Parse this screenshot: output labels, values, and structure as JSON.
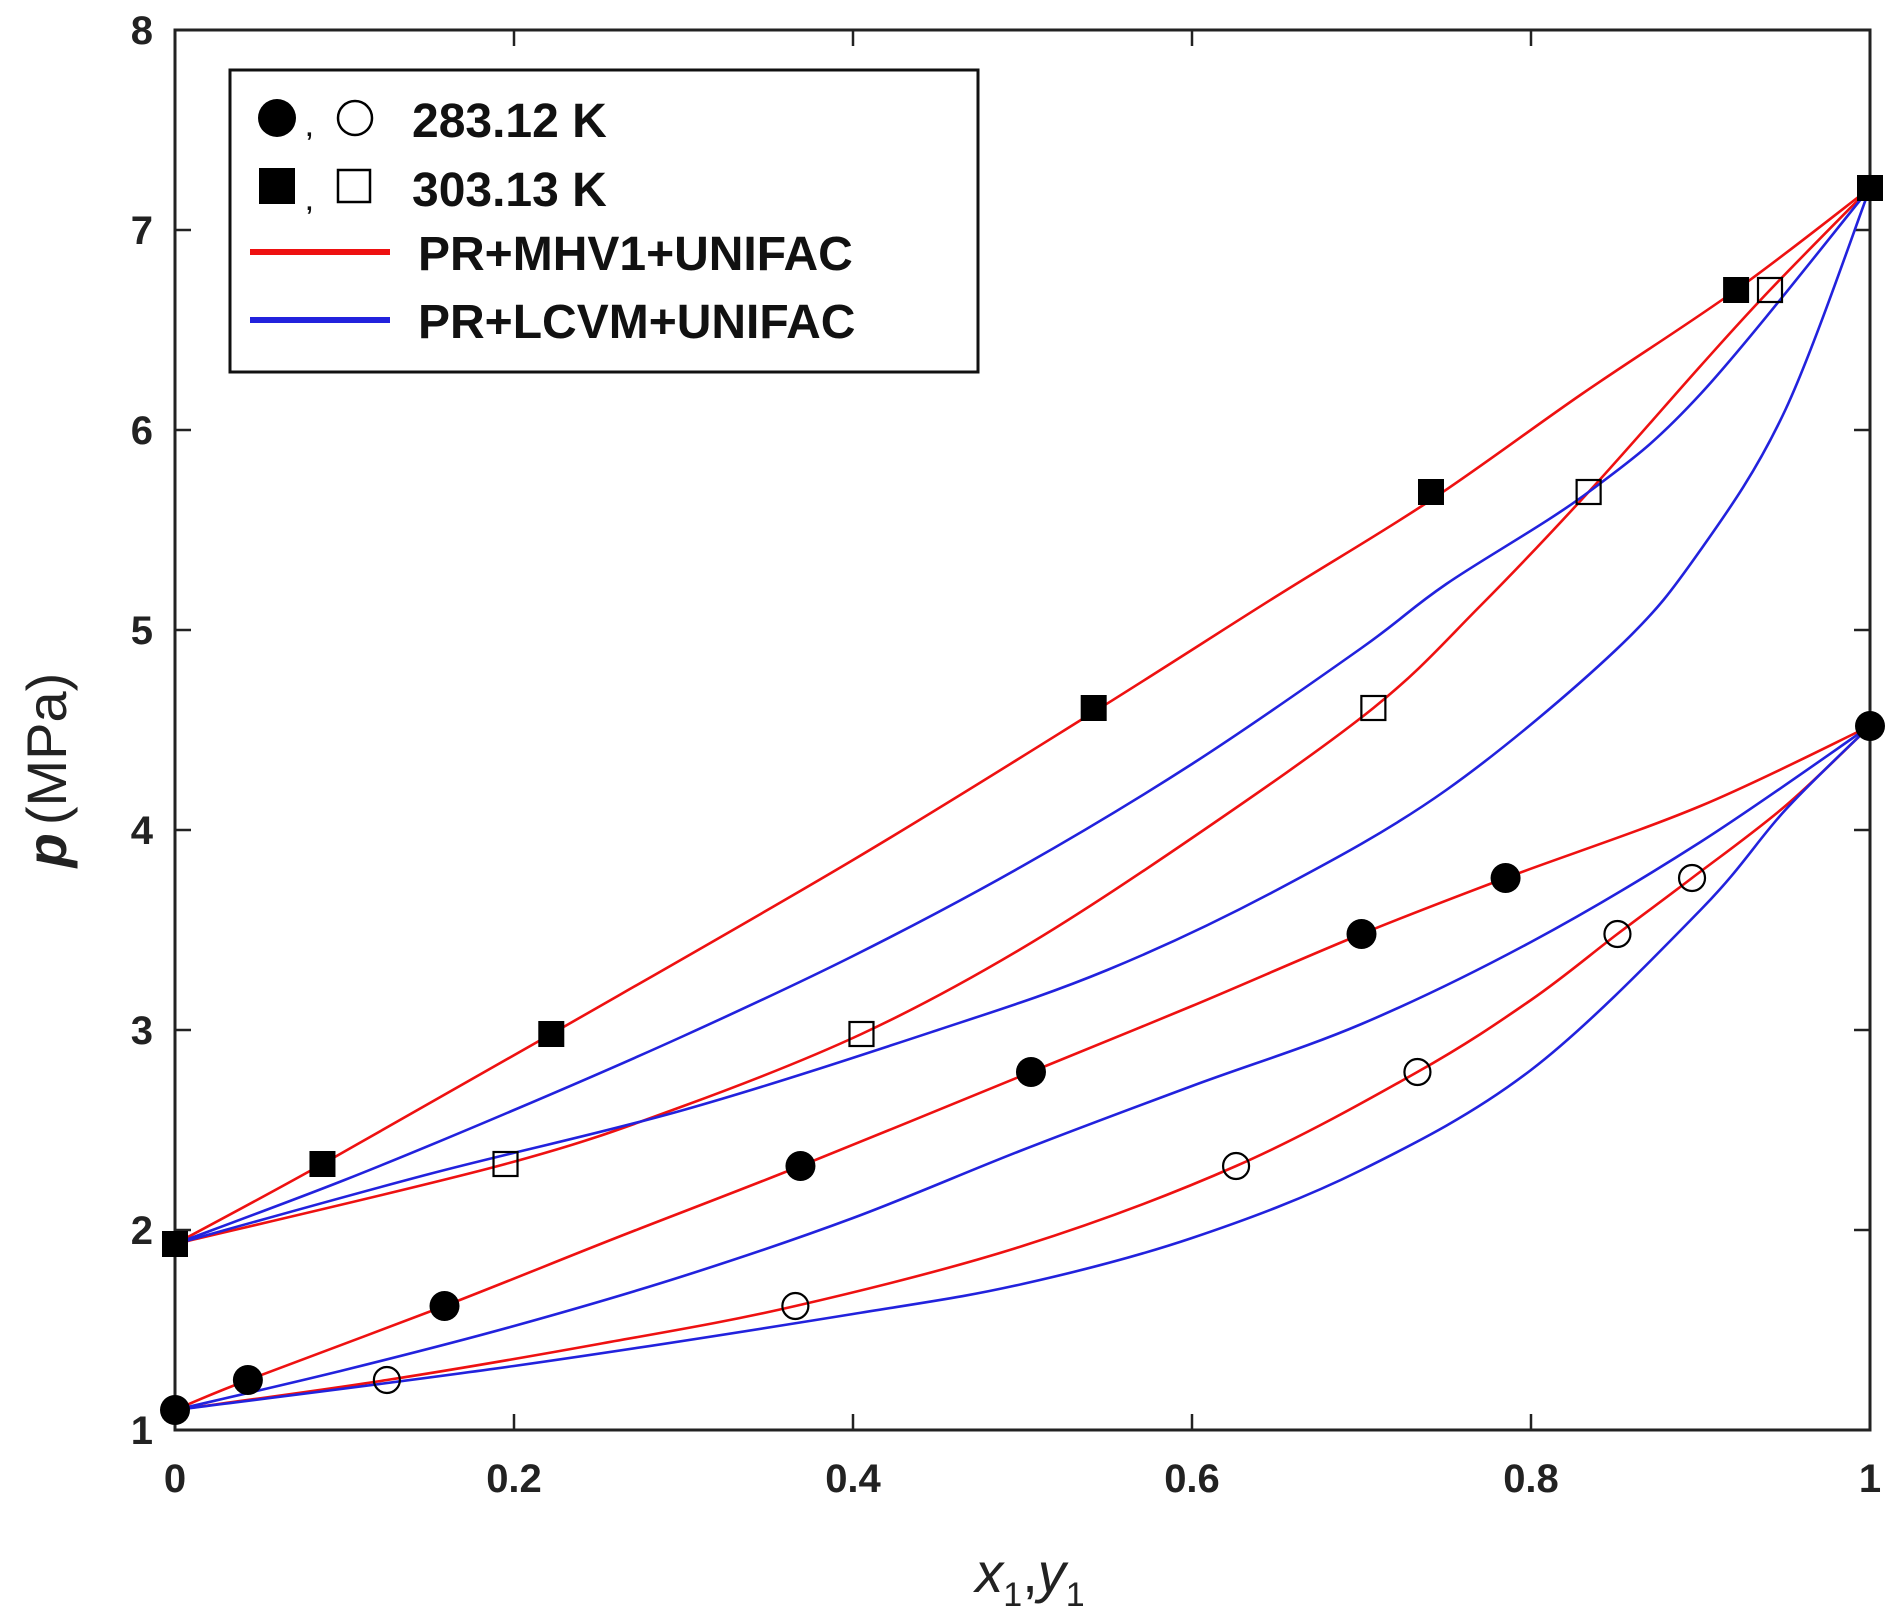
{
  "chart_data": {
    "type": "scatter",
    "title": "",
    "xlabel": {
      "var": "x",
      "sub": "1",
      "sep": ",",
      "var2": "y",
      "sub2": "1"
    },
    "ylabel": {
      "var": "p",
      "unit": "(MPa)"
    },
    "xlim": [
      0,
      1
    ],
    "ylim": [
      1,
      8
    ],
    "xticks": [
      "0",
      "0.2",
      "0.4",
      "0.6",
      "0.8",
      "1"
    ],
    "yticks": [
      "1",
      "2",
      "3",
      "4",
      "5",
      "6",
      "7",
      "8"
    ],
    "legend": {
      "placement": "top-left",
      "entries": [
        {
          "marker": "circle",
          "separator": ",",
          "label": "283.12 K"
        },
        {
          "marker": "square",
          "separator": ",",
          "label": "303.13 K"
        },
        {
          "line_color": "#ee1111",
          "label": "PR+MHV1+UNIFAC"
        },
        {
          "line_color": "#2222dd",
          "label": "PR+LCVM+UNIFAC"
        }
      ]
    },
    "points": [
      {
        "name": "283.12 K liquid (x1)",
        "marker": "circle",
        "filled": true,
        "x": [
          0.0,
          0.043,
          0.159,
          0.369,
          0.505,
          0.7,
          0.785,
          1.0
        ],
        "y": [
          1.1,
          1.25,
          1.62,
          2.32,
          2.79,
          3.48,
          3.76,
          4.52
        ]
      },
      {
        "name": "283.12 K vapor (y1)",
        "marker": "circle",
        "filled": false,
        "x": [
          0.125,
          0.366,
          0.626,
          0.733,
          0.851,
          0.895
        ],
        "y": [
          1.25,
          1.62,
          2.32,
          2.79,
          3.48,
          3.76
        ]
      },
      {
        "name": "303.13 K liquid (x1)",
        "marker": "square",
        "filled": true,
        "x": [
          0.0,
          0.087,
          0.222,
          0.542,
          0.741,
          0.921,
          1.0
        ],
        "y": [
          1.93,
          2.33,
          2.98,
          4.61,
          5.69,
          6.7,
          7.21
        ]
      },
      {
        "name": "303.13 K vapor (y1)",
        "marker": "square",
        "filled": false,
        "x": [
          0.195,
          0.405,
          0.707,
          0.834,
          0.941
        ],
        "y": [
          2.33,
          2.98,
          4.61,
          5.69,
          6.7
        ]
      }
    ],
    "curves": [
      {
        "model": "PR+MHV1+UNIFAC",
        "color": "#ee1111",
        "branch": "303.13 K bubble",
        "x": [
          0,
          0.087,
          0.222,
          0.4,
          0.542,
          0.65,
          0.741,
          0.83,
          0.921,
          1.0
        ],
        "y": [
          1.93,
          2.33,
          2.98,
          3.85,
          4.59,
          5.17,
          5.65,
          6.18,
          6.7,
          7.21
        ]
      },
      {
        "model": "PR+MHV1+UNIFAC",
        "color": "#ee1111",
        "branch": "303.13 K dew",
        "x": [
          0,
          0.195,
          0.3,
          0.405,
          0.5,
          0.6,
          0.707,
          0.77,
          0.834,
          0.9,
          0.941,
          1.0
        ],
        "y": [
          1.93,
          2.33,
          2.62,
          2.98,
          3.41,
          3.96,
          4.61,
          5.12,
          5.69,
          6.32,
          6.7,
          7.21
        ]
      },
      {
        "model": "PR+LCVM+UNIFAC",
        "color": "#2222dd",
        "branch": "303.13 K bubble",
        "x": [
          0,
          0.1,
          0.2,
          0.3,
          0.4,
          0.5,
          0.6,
          0.7,
          0.75,
          0.834,
          0.9,
          1.0
        ],
        "y": [
          1.93,
          2.25,
          2.6,
          2.97,
          3.37,
          3.82,
          4.33,
          4.91,
          5.23,
          5.69,
          6.18,
          7.21
        ]
      },
      {
        "model": "PR+LCVM+UNIFAC",
        "color": "#2222dd",
        "branch": "303.13 K dew",
        "x": [
          0,
          0.15,
          0.3,
          0.45,
          0.55,
          0.65,
          0.75,
          0.85,
          0.9,
          0.95,
          1.0
        ],
        "y": [
          1.93,
          2.28,
          2.6,
          3.0,
          3.3,
          3.7,
          4.2,
          4.9,
          5.4,
          6.1,
          7.21
        ]
      },
      {
        "model": "PR+MHV1+UNIFAC",
        "color": "#ee1111",
        "branch": "283.12 K bubble",
        "x": [
          0,
          0.043,
          0.159,
          0.26,
          0.369,
          0.505,
          0.6,
          0.7,
          0.785,
          0.9,
          1.0
        ],
        "y": [
          1.1,
          1.25,
          1.62,
          1.96,
          2.32,
          2.79,
          3.12,
          3.48,
          3.76,
          4.12,
          4.52
        ]
      },
      {
        "model": "PR+MHV1+UNIFAC",
        "color": "#ee1111",
        "branch": "283.12 K dew",
        "x": [
          0,
          0.125,
          0.25,
          0.366,
          0.5,
          0.626,
          0.733,
          0.8,
          0.851,
          0.895,
          0.95,
          1.0
        ],
        "y": [
          1.1,
          1.25,
          1.43,
          1.62,
          1.92,
          2.32,
          2.79,
          3.15,
          3.48,
          3.76,
          4.12,
          4.52
        ]
      },
      {
        "model": "PR+LCVM+UNIFAC",
        "color": "#2222dd",
        "branch": "283.12 K bubble",
        "x": [
          0,
          0.1,
          0.2,
          0.3,
          0.4,
          0.5,
          0.6,
          0.7,
          0.8,
          0.9,
          1.0
        ],
        "y": [
          1.1,
          1.3,
          1.52,
          1.77,
          2.06,
          2.4,
          2.72,
          3.03,
          3.44,
          3.94,
          4.52
        ]
      },
      {
        "model": "PR+LCVM+UNIFAC",
        "color": "#2222dd",
        "branch": "283.12 K dew",
        "x": [
          0,
          0.2,
          0.4,
          0.5,
          0.6,
          0.7,
          0.8,
          0.9,
          0.95,
          1.0
        ],
        "y": [
          1.1,
          1.32,
          1.58,
          1.73,
          1.96,
          2.3,
          2.8,
          3.6,
          4.1,
          4.52
        ]
      }
    ]
  }
}
